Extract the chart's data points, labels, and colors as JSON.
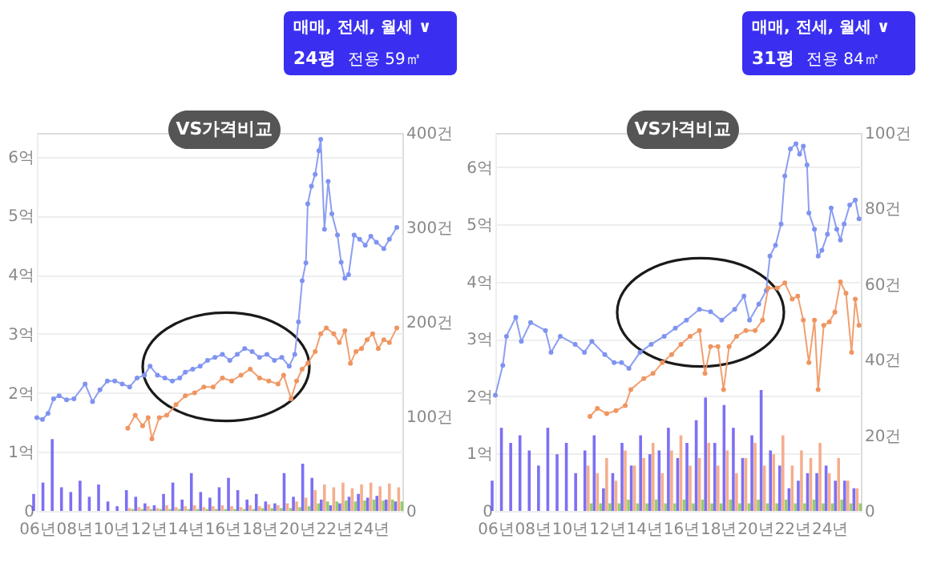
{
  "chart_data": [
    {
      "type": "line",
      "annotations": [
        "매매, 전세, 월세 ∨",
        "24평",
        "전용 59㎡",
        "VS가격비교"
      ],
      "xlim": [
        6,
        25.7
      ],
      "xticks": [
        {
          "value": 6,
          "label": "06년"
        },
        {
          "value": 8,
          "label": "08년"
        },
        {
          "value": 10,
          "label": "10년"
        },
        {
          "value": 12,
          "label": "12년"
        },
        {
          "value": 14,
          "label": "14년"
        },
        {
          "value": 16,
          "label": "16년"
        },
        {
          "value": 18,
          "label": "18년"
        },
        {
          "value": 20,
          "label": "20년"
        },
        {
          "value": 22,
          "label": "22년"
        },
        {
          "value": 24,
          "label": "24년"
        }
      ],
      "ylim": [
        0,
        6.4
      ],
      "yticks": [
        0,
        {
          "value": 1,
          "label": "1억"
        },
        {
          "value": 2,
          "label": "2억"
        },
        {
          "value": 3,
          "label": "3억"
        },
        {
          "value": 4,
          "label": "4억"
        },
        {
          "value": 5,
          "label": "5억"
        },
        {
          "value": 6,
          "label": "6억"
        }
      ],
      "y2lim": [
        0,
        400
      ],
      "y2ticks": [
        0,
        {
          "value": 100,
          "label": "100건"
        },
        {
          "value": 200,
          "label": "200건"
        },
        {
          "value": 300,
          "label": "300건"
        },
        {
          "value": 400,
          "label": "400건"
        }
      ],
      "grid": "y",
      "marker": "circle",
      "line_style": "solid",
      "legend": false,
      "series": [
        {
          "type": "bar",
          "axis": "y2",
          "color": "#5b4cf0",
          "x": [
            6.0,
            6.5,
            7.0,
            7.5,
            8.0,
            8.5,
            9.0,
            9.5,
            10.0,
            10.5,
            11.0,
            11.5,
            12.0,
            12.5,
            13.0,
            13.5,
            14.0,
            14.5,
            15.0,
            15.5,
            16.0,
            16.5,
            17.0,
            17.5,
            18.0,
            18.5,
            19.0,
            19.5,
            20.0,
            20.5,
            21.0,
            21.5,
            22.0,
            22.5,
            23.0,
            23.5,
            24.0,
            24.5,
            25.0,
            25.5
          ],
          "values": [
            18,
            30,
            76,
            25,
            20,
            32,
            15,
            28,
            10,
            5,
            22,
            15,
            8,
            6,
            18,
            30,
            12,
            40,
            20,
            14,
            25,
            35,
            22,
            12,
            18,
            10,
            8,
            40,
            15,
            50,
            35,
            12,
            6,
            8,
            15,
            18,
            14,
            16,
            12,
            10
          ]
        },
        {
          "type": "bar",
          "axis": "y2",
          "color": "#f29a73",
          "x": [
            11.0,
            11.5,
            12.0,
            12.5,
            13.0,
            13.5,
            14.0,
            14.5,
            15.0,
            15.5,
            16.0,
            16.5,
            17.0,
            17.5,
            18.0,
            18.5,
            19.0,
            19.5,
            20.0,
            20.5,
            21.0,
            21.5,
            22.0,
            22.5,
            23.0,
            23.5,
            24.0,
            24.5,
            25.0,
            25.5
          ],
          "values": [
            3,
            4,
            5,
            3,
            6,
            4,
            5,
            6,
            4,
            5,
            6,
            5,
            4,
            6,
            5,
            7,
            6,
            8,
            10,
            14,
            22,
            28,
            25,
            30,
            24,
            28,
            30,
            26,
            29,
            25
          ]
        },
        {
          "type": "bar",
          "axis": "y2",
          "color": "#7cc04f",
          "x": [
            11.0,
            11.5,
            12.0,
            12.5,
            13.0,
            13.5,
            14.0,
            14.5,
            15.0,
            15.5,
            16.0,
            16.5,
            17.0,
            17.5,
            18.0,
            18.5,
            19.0,
            19.5,
            20.0,
            20.5,
            21.0,
            21.5,
            22.0,
            22.5,
            23.0,
            23.5,
            24.0,
            24.5,
            25.0,
            25.5
          ],
          "values": [
            2,
            2,
            2,
            2,
            2,
            2,
            2,
            2,
            2,
            2,
            2,
            2,
            2,
            2,
            3,
            3,
            3,
            3,
            4,
            5,
            8,
            10,
            10,
            11,
            10,
            11,
            12,
            11,
            12,
            10
          ]
        },
        {
          "color": "#7f93f0",
          "x": [
            6.0,
            6.3,
            6.6,
            6.9,
            7.2,
            7.6,
            8.0,
            8.6,
            9.0,
            9.4,
            9.8,
            10.2,
            10.6,
            11.0,
            11.4,
            11.8,
            12.1,
            12.5,
            12.9,
            13.3,
            13.7,
            14.0,
            14.4,
            14.8,
            15.2,
            15.6,
            16.0,
            16.4,
            16.8,
            17.2,
            17.6,
            18.0,
            18.4,
            18.8,
            19.2,
            19.6,
            19.9,
            20.1,
            20.3,
            20.5,
            20.6,
            20.8,
            21.0,
            21.2,
            21.3,
            21.5,
            21.7,
            21.9,
            22.2,
            22.4,
            22.6,
            22.8,
            23.1,
            23.4,
            23.7,
            24.0,
            24.3,
            24.7,
            25.0,
            25.4
          ],
          "values": [
            1.58,
            1.55,
            1.65,
            1.9,
            1.95,
            1.88,
            1.9,
            2.15,
            1.85,
            2.05,
            2.2,
            2.2,
            2.15,
            2.1,
            2.25,
            2.3,
            2.45,
            2.3,
            2.25,
            2.2,
            2.25,
            2.35,
            2.4,
            2.45,
            2.55,
            2.6,
            2.65,
            2.55,
            2.65,
            2.75,
            2.7,
            2.6,
            2.65,
            2.55,
            2.6,
            2.45,
            2.65,
            3.2,
            3.9,
            4.2,
            5.2,
            5.5,
            5.7,
            6.1,
            6.29,
            4.77,
            5.58,
            5.03,
            4.67,
            4.21,
            3.94,
            4.0,
            4.67,
            4.6,
            4.5,
            4.65,
            4.55,
            4.44,
            4.6,
            4.8
          ]
        },
        {
          "color": "#ef9560",
          "x": [
            10.9,
            11.3,
            11.7,
            12.0,
            12.2,
            12.6,
            13.0,
            13.5,
            14.0,
            14.5,
            15.0,
            15.5,
            16.0,
            16.5,
            17.0,
            17.5,
            18.0,
            18.5,
            19.0,
            19.3,
            19.7,
            20.0,
            20.3,
            20.6,
            21.0,
            21.3,
            21.6,
            22.0,
            22.3,
            22.6,
            22.9,
            23.2,
            23.5,
            23.8,
            24.1,
            24.4,
            24.7,
            25.0,
            25.4
          ],
          "values": [
            1.4,
            1.62,
            1.44,
            1.58,
            1.22,
            1.58,
            1.62,
            1.8,
            1.95,
            2.0,
            2.1,
            2.1,
            2.25,
            2.2,
            2.3,
            2.4,
            2.25,
            2.2,
            2.15,
            2.3,
            1.9,
            2.2,
            2.4,
            2.5,
            2.7,
            3.0,
            3.1,
            3.0,
            2.85,
            3.05,
            2.5,
            2.7,
            2.75,
            2.9,
            3.0,
            2.75,
            2.9,
            2.85,
            3.1
          ]
        }
      ]
    },
    {
      "type": "line",
      "annotations": [
        "매매, 전세, 월세 ∨",
        "31평",
        "전용 84㎡",
        "VS가격비교"
      ],
      "xlim": [
        6,
        25.7
      ],
      "xticks": [
        {
          "value": 6,
          "label": "06년"
        },
        {
          "value": 8,
          "label": "08년"
        },
        {
          "value": 10,
          "label": "10년"
        },
        {
          "value": 12,
          "label": "12년"
        },
        {
          "value": 14,
          "label": "14년"
        },
        {
          "value": 16,
          "label": "16년"
        },
        {
          "value": 18,
          "label": "18년"
        },
        {
          "value": 20,
          "label": "20년"
        },
        {
          "value": 22,
          "label": "22년"
        },
        {
          "value": 24,
          "label": "24년"
        }
      ],
      "ylim": [
        0,
        6.6
      ],
      "yticks": [
        0,
        {
          "value": 1,
          "label": "1억"
        },
        {
          "value": 2,
          "label": "2억"
        },
        {
          "value": 3,
          "label": "3억"
        },
        {
          "value": 4,
          "label": "4억"
        },
        {
          "value": 5,
          "label": "5억"
        },
        {
          "value": 6,
          "label": "6억"
        }
      ],
      "y2lim": [
        0,
        100
      ],
      "y2ticks": [
        0,
        {
          "value": 20,
          "label": "20건"
        },
        {
          "value": 40,
          "label": "40건"
        },
        {
          "value": 60,
          "label": "60건"
        },
        {
          "value": 80,
          "label": "80건"
        },
        {
          "value": 100,
          "label": "100건"
        }
      ],
      "grid": "y",
      "marker": "circle",
      "line_style": "solid",
      "legend": false,
      "series": [
        {
          "type": "bar",
          "axis": "y2",
          "color": "#5b4cf0",
          "x": [
            6.0,
            6.5,
            7.0,
            7.5,
            8.0,
            8.5,
            9.0,
            9.5,
            10.0,
            10.5,
            11.0,
            11.5,
            12.0,
            12.5,
            13.0,
            13.5,
            14.0,
            14.5,
            15.0,
            15.5,
            16.0,
            16.5,
            17.0,
            17.5,
            18.0,
            18.5,
            19.0,
            19.5,
            20.0,
            20.5,
            21.0,
            21.5,
            22.0,
            22.5,
            23.0,
            23.5,
            24.0,
            24.5,
            25.0,
            25.5
          ],
          "values": [
            8,
            22,
            18,
            20,
            16,
            12,
            22,
            15,
            18,
            10,
            16,
            20,
            6,
            10,
            18,
            12,
            20,
            15,
            16,
            22,
            14,
            18,
            24,
            30,
            18,
            28,
            22,
            14,
            20,
            32,
            16,
            12,
            6,
            8,
            10,
            10,
            12,
            8,
            8,
            6
          ]
        },
        {
          "type": "bar",
          "axis": "y2",
          "color": "#f29a73",
          "x": [
            11.0,
            11.5,
            12.0,
            12.5,
            13.0,
            13.5,
            14.0,
            14.5,
            15.0,
            15.5,
            16.0,
            16.5,
            17.0,
            17.5,
            18.0,
            18.5,
            19.0,
            19.5,
            20.0,
            20.5,
            21.0,
            21.5,
            22.0,
            22.5,
            23.0,
            23.5,
            24.0,
            24.5,
            25.0,
            25.5
          ],
          "values": [
            12,
            10,
            14,
            8,
            16,
            12,
            14,
            18,
            10,
            16,
            20,
            12,
            14,
            18,
            12,
            16,
            10,
            14,
            18,
            12,
            15,
            20,
            12,
            16,
            14,
            18,
            10,
            14,
            8,
            6
          ]
        },
        {
          "type": "bar",
          "axis": "y2",
          "color": "#7cc04f",
          "x": [
            11.0,
            11.5,
            12.0,
            12.5,
            13.0,
            13.5,
            14.0,
            14.5,
            15.0,
            15.5,
            16.0,
            16.5,
            17.0,
            17.5,
            18.0,
            18.5,
            19.0,
            19.5,
            20.0,
            20.5,
            21.0,
            21.5,
            22.0,
            22.5,
            23.0,
            23.5,
            24.0,
            24.5,
            25.0,
            25.5
          ],
          "values": [
            2,
            2,
            2,
            2,
            3,
            2,
            2,
            3,
            2,
            2,
            3,
            2,
            3,
            2,
            2,
            3,
            2,
            2,
            3,
            2,
            2,
            3,
            2,
            2,
            3,
            2,
            2,
            3,
            2,
            2
          ]
        },
        {
          "color": "#7f93f0",
          "x": [
            6.0,
            6.4,
            6.6,
            7.1,
            7.4,
            7.9,
            8.7,
            9.0,
            9.5,
            10.3,
            10.8,
            11.2,
            11.9,
            12.4,
            12.8,
            13.2,
            13.8,
            14.4,
            15.1,
            15.7,
            16.3,
            17.0,
            17.6,
            18.2,
            18.9,
            19.4,
            19.7,
            20.2,
            20.6,
            20.8,
            21.1,
            21.4,
            21.6,
            21.9,
            22.2,
            22.4,
            22.6,
            22.8,
            22.9,
            23.2,
            23.4,
            23.6,
            23.9,
            24.1,
            24.4,
            24.6,
            24.8,
            25.1,
            25.4,
            25.6
          ],
          "values": [
            2.02,
            2.54,
            3.05,
            3.38,
            2.96,
            3.29,
            3.15,
            2.77,
            3.05,
            2.91,
            2.77,
            2.96,
            2.73,
            2.59,
            2.59,
            2.49,
            2.77,
            2.91,
            3.05,
            3.19,
            3.33,
            3.52,
            3.48,
            3.33,
            3.52,
            3.75,
            3.33,
            3.61,
            3.85,
            4.45,
            4.64,
            5.01,
            5.85,
            6.32,
            6.41,
            6.23,
            6.37,
            6.04,
            5.2,
            4.92,
            4.45,
            4.55,
            4.83,
            5.29,
            4.92,
            4.73,
            5.01,
            5.34,
            5.43,
            5.1
          ]
        },
        {
          "color": "#ef9560",
          "x": [
            11.1,
            11.5,
            12.0,
            12.5,
            13.0,
            13.3,
            14.0,
            14.5,
            15.0,
            15.5,
            16.0,
            16.5,
            17.0,
            17.3,
            17.6,
            18.0,
            18.3,
            18.6,
            19.0,
            19.5,
            20.0,
            20.4,
            20.7,
            21.2,
            21.6,
            22.0,
            22.3,
            22.6,
            22.9,
            23.2,
            23.4,
            23.7,
            24.0,
            24.3,
            24.6,
            24.9,
            25.2,
            25.4,
            25.6
          ],
          "values": [
            1.65,
            1.79,
            1.7,
            1.75,
            1.84,
            2.12,
            2.31,
            2.4,
            2.59,
            2.73,
            2.91,
            3.05,
            3.15,
            2.4,
            2.87,
            2.87,
            2.12,
            2.87,
            3.05,
            3.15,
            3.15,
            3.33,
            3.89,
            3.89,
            3.98,
            3.7,
            3.75,
            3.33,
            2.59,
            3.33,
            2.12,
            3.24,
            3.3,
            3.47,
            4.0,
            3.8,
            2.77,
            3.7,
            3.24
          ]
        }
      ]
    }
  ]
}
